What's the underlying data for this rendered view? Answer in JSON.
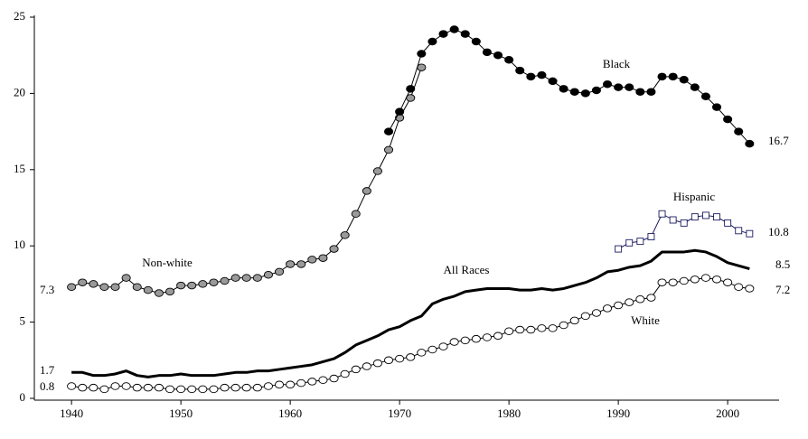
{
  "chart_data": {
    "type": "line",
    "x": [
      1940,
      1941,
      1942,
      1943,
      1944,
      1945,
      1946,
      1947,
      1948,
      1949,
      1950,
      1951,
      1952,
      1953,
      1954,
      1955,
      1956,
      1957,
      1958,
      1959,
      1960,
      1961,
      1962,
      1963,
      1964,
      1965,
      1966,
      1967,
      1968,
      1969,
      1970,
      1971,
      1972,
      1973,
      1974,
      1975,
      1976,
      1977,
      1978,
      1979,
      1980,
      1981,
      1982,
      1983,
      1984,
      1985,
      1986,
      1987,
      1988,
      1989,
      1990,
      1991,
      1992,
      1993,
      1994,
      1995,
      1996,
      1997,
      1998,
      1999,
      2000,
      2001,
      2002
    ],
    "xlim": [
      1936.6,
      2004.7
    ],
    "xticks": [
      1940,
      1950,
      1960,
      1970,
      1980,
      1990,
      2000
    ],
    "ylim": [
      0,
      25
    ],
    "yticks": [
      0,
      5,
      10,
      15,
      20,
      25
    ],
    "grid": false,
    "series": [
      {
        "name": "Non-white",
        "color": "#000000",
        "marker": "circle",
        "marker_fill": "#9a9a9a",
        "line_width": 1,
        "values": [
          7.3,
          7.6,
          7.5,
          7.3,
          7.3,
          7.9,
          7.3,
          7.1,
          6.9,
          7.0,
          7.4,
          7.4,
          7.5,
          7.6,
          7.7,
          7.9,
          7.9,
          7.9,
          8.1,
          8.3,
          8.8,
          8.8,
          9.1,
          9.2,
          9.8,
          10.7,
          12.1,
          13.6,
          14.9,
          16.3,
          18.4,
          19.7,
          21.7,
          null,
          null,
          null,
          null,
          null,
          null,
          null,
          null,
          null,
          null,
          null,
          null,
          null,
          null,
          null,
          null,
          null,
          null,
          null,
          null,
          null,
          null,
          null,
          null,
          null,
          null,
          null,
          null,
          null,
          null
        ]
      },
      {
        "name": "Black",
        "color": "#000000",
        "marker": "circle",
        "marker_fill": "#000000",
        "line_width": 1,
        "values": [
          null,
          null,
          null,
          null,
          null,
          null,
          null,
          null,
          null,
          null,
          null,
          null,
          null,
          null,
          null,
          null,
          null,
          null,
          null,
          null,
          null,
          null,
          null,
          null,
          null,
          null,
          null,
          null,
          null,
          17.5,
          18.8,
          20.3,
          22.6,
          23.4,
          23.9,
          24.2,
          23.9,
          23.4,
          22.7,
          22.5,
          22.2,
          21.5,
          21.1,
          21.2,
          20.8,
          20.3,
          20.1,
          20.0,
          20.2,
          20.6,
          20.4,
          20.4,
          20.1,
          20.1,
          21.1,
          21.1,
          20.9,
          20.4,
          19.8,
          19.1,
          18.3,
          17.5,
          16.7
        ]
      },
      {
        "name": "Hispanic",
        "color": "#1a1a5e",
        "marker": "square",
        "marker_fill": "#ffffff",
        "line_width": 1,
        "values": [
          null,
          null,
          null,
          null,
          null,
          null,
          null,
          null,
          null,
          null,
          null,
          null,
          null,
          null,
          null,
          null,
          null,
          null,
          null,
          null,
          null,
          null,
          null,
          null,
          null,
          null,
          null,
          null,
          null,
          null,
          null,
          null,
          null,
          null,
          null,
          null,
          null,
          null,
          null,
          null,
          null,
          null,
          null,
          null,
          null,
          null,
          null,
          null,
          null,
          null,
          9.8,
          10.2,
          10.3,
          10.6,
          12.1,
          11.7,
          11.5,
          11.9,
          12.0,
          11.9,
          11.5,
          11.0,
          10.8
        ]
      },
      {
        "name": "All Races",
        "color": "#000000",
        "marker": "none",
        "marker_fill": "#000000",
        "line_width": 3,
        "values": [
          1.7,
          1.7,
          1.5,
          1.5,
          1.6,
          1.8,
          1.5,
          1.4,
          1.5,
          1.5,
          1.6,
          1.5,
          1.5,
          1.5,
          1.6,
          1.7,
          1.7,
          1.8,
          1.8,
          1.9,
          2.0,
          2.1,
          2.2,
          2.4,
          2.6,
          3.0,
          3.5,
          3.8,
          4.1,
          4.5,
          4.7,
          5.1,
          5.4,
          6.2,
          6.5,
          6.7,
          7.0,
          7.1,
          7.2,
          7.2,
          7.2,
          7.1,
          7.1,
          7.2,
          7.1,
          7.2,
          7.4,
          7.6,
          7.9,
          8.3,
          8.4,
          8.6,
          8.7,
          9.0,
          9.6,
          9.6,
          9.6,
          9.7,
          9.6,
          9.3,
          8.9,
          8.7,
          8.5
        ]
      },
      {
        "name": "White",
        "color": "#000000",
        "marker": "circle",
        "marker_fill": "#ffffff",
        "line_width": 1,
        "values": [
          0.8,
          0.7,
          0.7,
          0.6,
          0.8,
          0.8,
          0.7,
          0.7,
          0.7,
          0.6,
          0.6,
          0.6,
          0.6,
          0.6,
          0.7,
          0.7,
          0.7,
          0.7,
          0.8,
          0.9,
          0.9,
          1.0,
          1.1,
          1.2,
          1.3,
          1.6,
          1.9,
          2.1,
          2.3,
          2.5,
          2.6,
          2.7,
          3.0,
          3.2,
          3.4,
          3.7,
          3.8,
          3.9,
          4.0,
          4.1,
          4.4,
          4.5,
          4.5,
          4.6,
          4.6,
          4.8,
          5.1,
          5.4,
          5.6,
          5.9,
          6.1,
          6.3,
          6.5,
          6.6,
          7.6,
          7.6,
          7.7,
          7.8,
          7.9,
          7.8,
          7.6,
          7.3,
          7.2
        ]
      }
    ]
  }
}
